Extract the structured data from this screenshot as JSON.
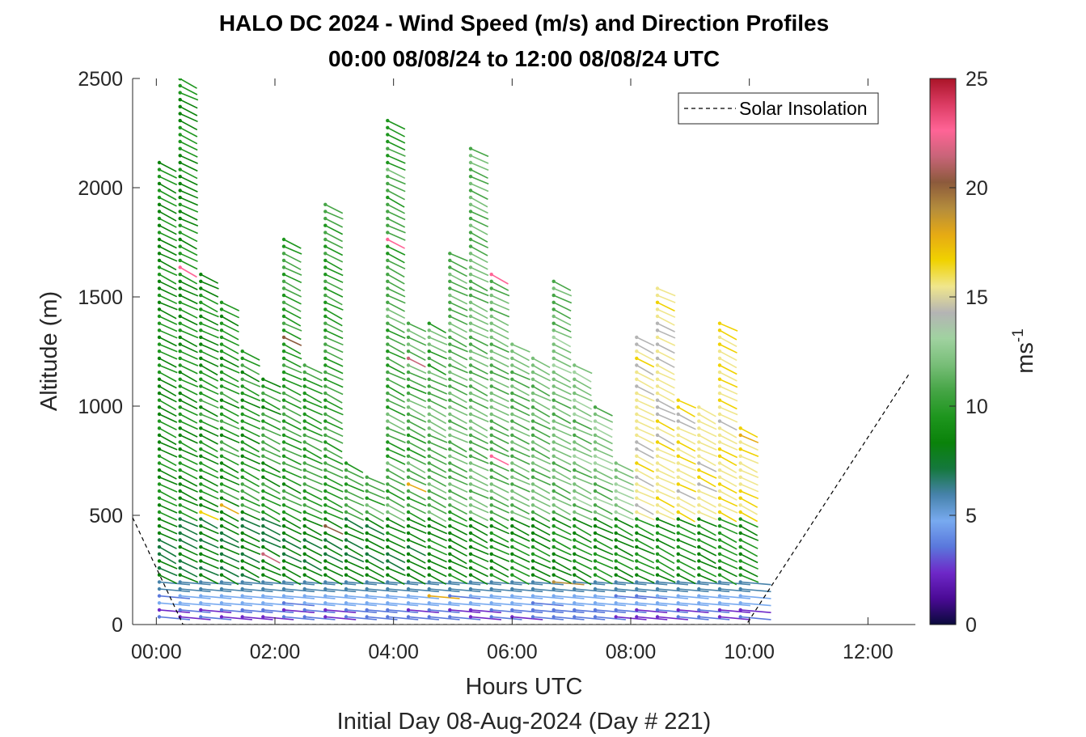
{
  "chart_data": {
    "type": "wind-barb-profile",
    "title_line1": "HALO DC 2024 - Wind Speed (m/s) and Direction Profiles",
    "title_line2": "00:00 08/08/24 to 12:00 08/08/24  UTC",
    "xlabel": "Hours UTC",
    "xlabel2": "Initial Day 08-Aug-2024 (Day # 221)",
    "ylabel": "Altitude (m)",
    "colorbar_label": "ms",
    "colorbar_label_exp": "-1",
    "legend_entry": "Solar Insolation",
    "xlim": [
      -0.4,
      12.8
    ],
    "ylim": [
      0,
      2500
    ],
    "x_ticks": [
      0,
      2,
      4,
      6,
      8,
      10,
      12
    ],
    "x_tick_labels": [
      "00:00",
      "02:00",
      "04:00",
      "06:00",
      "08:00",
      "10:00",
      "12:00"
    ],
    "y_ticks": [
      0,
      500,
      1000,
      1500,
      2000,
      2500
    ],
    "y_tick_labels": [
      "0",
      "500",
      "1000",
      "1500",
      "2000",
      "2500"
    ],
    "colorbar_range": [
      0,
      25
    ],
    "colorbar_ticks": [
      "0",
      "5",
      "10",
      "15",
      "20",
      "25"
    ],
    "colorbar_stops": [
      "#0a0a3c",
      "#4b0a96",
      "#6e28c8",
      "#5a78dc",
      "#78aaf0",
      "#4682aa",
      "#14783c",
      "#0a820a",
      "#1e961e",
      "#46a546",
      "#78be78",
      "#a0d2a0",
      "#b4b4b4",
      "#f0e68c",
      "#f0d200",
      "#e6aa14",
      "#b48c3c",
      "#8c5a3c",
      "#c86478",
      "#ff6496",
      "#dc3c64",
      "#aa1428"
    ],
    "profile_times_hours": [
      0.05,
      0.4,
      0.75,
      1.1,
      1.45,
      1.8,
      2.15,
      2.5,
      2.85,
      3.2,
      3.55,
      3.9,
      4.25,
      4.6,
      4.95,
      5.3,
      5.65,
      6.0,
      6.35,
      6.7,
      7.05,
      7.4,
      7.75,
      8.1,
      8.45,
      8.8,
      9.15,
      9.5,
      9.85
    ],
    "profile_top_altitude_m": [
      2130,
      2500,
      1610,
      1480,
      1260,
      1130,
      1780,
      1210,
      1950,
      760,
      690,
      2320,
      1400,
      1390,
      1700,
      2180,
      1630,
      1290,
      1230,
      1600,
      1200,
      1010,
      750,
      1330,
      1540,
      1040,
      1000,
      1410,
      910
    ],
    "altitude_step_m": 32,
    "solar_insolation_curve": {
      "x": [
        -0.4,
        0.45,
        0.8,
        9.95,
        12.7
      ],
      "y": [
        490,
        0,
        0,
        0,
        1150
      ]
    }
  }
}
